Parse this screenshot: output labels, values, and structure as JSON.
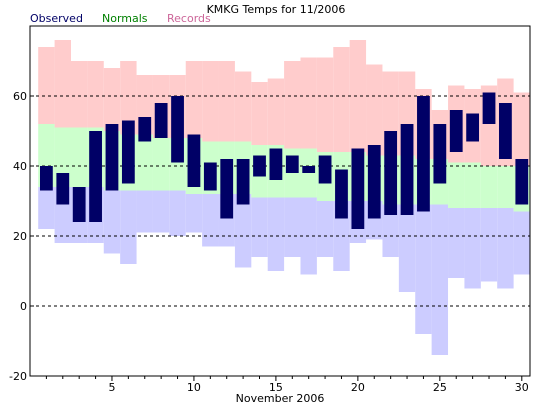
{
  "chart_data": {
    "type": "bar",
    "title": "KMKG Temps for 11/2006",
    "xlabel": "November 2006",
    "ylabel": "",
    "ylim": [
      -20,
      80
    ],
    "xlim": [
      1,
      30
    ],
    "y_ticks": [
      -20,
      0,
      20,
      40,
      60
    ],
    "x_ticks": [
      5,
      10,
      15,
      20,
      25,
      30
    ],
    "grid_lines": [
      -20,
      0,
      20,
      40,
      60
    ],
    "legend_position": "top-left",
    "days": [
      1,
      2,
      3,
      4,
      5,
      6,
      7,
      8,
      9,
      10,
      11,
      12,
      13,
      14,
      15,
      16,
      17,
      18,
      19,
      20,
      21,
      22,
      23,
      24,
      25,
      26,
      27,
      28,
      29,
      30
    ],
    "series": [
      {
        "name": "Observed",
        "color": "#000066",
        "high": [
          40,
          38,
          34,
          50,
          52,
          53,
          54,
          58,
          60,
          49,
          41,
          42,
          42,
          43,
          45,
          43,
          40,
          43,
          39,
          45,
          46,
          50,
          52,
          60,
          52,
          56,
          55,
          61,
          58,
          42
        ],
        "low": [
          33,
          29,
          24,
          24,
          33,
          35,
          47,
          48,
          41,
          34,
          33,
          25,
          29,
          37,
          36,
          38,
          38,
          35,
          25,
          22,
          25,
          26,
          26,
          27,
          35,
          44,
          47,
          52,
          42,
          29
        ]
      },
      {
        "name": "Normals",
        "color": "#ccffcc",
        "label_color": "#008000",
        "high": [
          52,
          51,
          51,
          51,
          50,
          49,
          49,
          48,
          48,
          48,
          47,
          47,
          47,
          46,
          46,
          45,
          45,
          44,
          44,
          44,
          43,
          43,
          43,
          42,
          42,
          41,
          41,
          40,
          40,
          40
        ],
        "low": [
          34,
          34,
          34,
          34,
          33,
          33,
          33,
          33,
          33,
          32,
          32,
          32,
          32,
          31,
          31,
          31,
          31,
          30,
          30,
          30,
          30,
          29,
          29,
          29,
          29,
          28,
          28,
          28,
          28,
          27
        ]
      },
      {
        "name": "Records",
        "color": "#ffcccc",
        "label_color": "#cc6699",
        "high": [
          74,
          76,
          70,
          70,
          68,
          70,
          66,
          66,
          66,
          70,
          70,
          70,
          67,
          64,
          65,
          70,
          71,
          71,
          74,
          76,
          69,
          67,
          67,
          62,
          56,
          63,
          62,
          63,
          65,
          61
        ],
        "low": [
          22,
          18,
          18,
          18,
          15,
          12,
          21,
          21,
          20,
          21,
          17,
          17,
          11,
          14,
          10,
          14,
          9,
          14,
          10,
          18,
          19,
          14,
          4,
          -8,
          -14,
          8,
          5,
          7,
          5,
          9
        ]
      }
    ]
  }
}
